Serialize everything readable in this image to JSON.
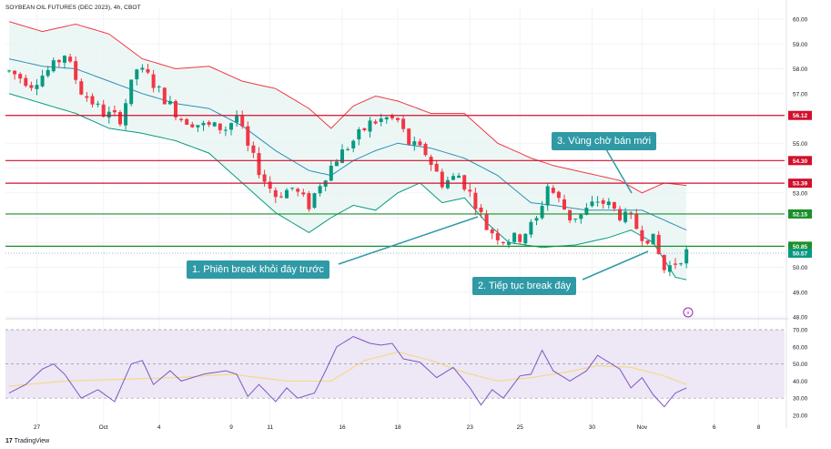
{
  "header": {
    "symbol": "SOYBEAN OIL FUTURES (DEC 2023), 4h, CBOT"
  },
  "branding": {
    "logo_text": "TradingView"
  },
  "callouts": [
    {
      "id": "c1",
      "text": "1. Phiên break khỏi đáy trước"
    },
    {
      "id": "c2",
      "text": "2. Tiếp tục break đáy"
    },
    {
      "id": "c3",
      "text": "3. Vùng chờ bán mới"
    }
  ],
  "colors": {
    "up": "#089981",
    "down": "#f23645",
    "band_upper": "#f23645",
    "band_lower": "#089981",
    "band_fill": "#e6f4f1",
    "basis": "#2f8fb5",
    "rsi": "#7e57c2",
    "rsi_ma": "#f7d774",
    "rsi_band": "#ede7f6",
    "callout_bg": "#2f9aa6",
    "red_level": "#d1102c",
    "green_level": "#1b8f2a"
  },
  "chart_data": [
    {
      "type": "candlestick",
      "title": "SOYBEAN OIL FUTURES (DEC 2023), 4h, CBOT",
      "ylim": [
        48,
        60
      ],
      "y_ticks": [
        "60.00",
        "59.00",
        "58.00",
        "57.00",
        "56.00",
        "55.00",
        "54.00",
        "53.00",
        "52.00",
        "51.00",
        "50.00",
        "49.00",
        "48.00"
      ],
      "x_ticks": [
        "27",
        "Oct",
        "4",
        "9",
        "11",
        "16",
        "18",
        "23",
        "25",
        "30",
        "Nov",
        "6",
        "8"
      ],
      "x_tick_index": [
        5,
        17,
        27,
        40,
        47,
        60,
        70,
        83,
        92,
        105,
        114,
        127,
        135
      ],
      "n_bars": 147,
      "last_price": 50.57,
      "levels": [
        {
          "price": 56.12,
          "label": "56.12",
          "role": "resistance"
        },
        {
          "price": 54.3,
          "label": "54.30",
          "role": "resistance"
        },
        {
          "price": 53.39,
          "label": "53.39",
          "role": "resistance"
        },
        {
          "price": 52.15,
          "label": "52.15",
          "role": "support"
        },
        {
          "price": 50.85,
          "label": "50.85",
          "role": "support"
        },
        {
          "price": 50.57,
          "label": "50.57",
          "role": "last"
        }
      ],
      "anchors": [
        [
          0,
          57.9
        ],
        [
          4,
          57.4
        ],
        [
          8,
          58.1
        ],
        [
          10,
          58.6
        ],
        [
          13,
          57.1
        ],
        [
          17,
          56.2
        ],
        [
          20,
          56.0
        ],
        [
          23,
          58.0
        ],
        [
          25,
          57.7
        ],
        [
          28,
          56.8
        ],
        [
          31,
          56.0
        ],
        [
          35,
          55.7
        ],
        [
          39,
          55.6
        ],
        [
          41,
          56.1
        ],
        [
          43,
          54.8
        ],
        [
          46,
          53.5
        ],
        [
          48,
          52.9
        ],
        [
          51,
          53.2
        ],
        [
          54,
          52.5
        ],
        [
          56,
          53.4
        ],
        [
          59,
          54.4
        ],
        [
          62,
          55.1
        ],
        [
          65,
          55.8
        ],
        [
          68,
          56.0
        ],
        [
          70,
          55.9
        ],
        [
          72,
          55.0
        ],
        [
          75,
          54.6
        ],
        [
          78,
          53.4
        ],
        [
          81,
          53.7
        ],
        [
          84,
          52.6
        ],
        [
          86,
          51.6
        ],
        [
          89,
          51.1
        ],
        [
          92,
          51.2
        ],
        [
          95,
          51.9
        ],
        [
          97,
          53.3
        ],
        [
          99,
          52.7
        ],
        [
          101,
          52.0
        ],
        [
          103,
          52.1
        ],
        [
          106,
          52.7
        ],
        [
          108,
          52.5
        ],
        [
          110,
          52.1
        ],
        [
          112,
          51.9
        ],
        [
          114,
          51.3
        ],
        [
          116,
          51.1
        ],
        [
          118,
          49.9
        ],
        [
          120,
          50.2
        ],
        [
          122,
          50.6
        ]
      ],
      "bollinger": {
        "upper": [
          [
            0,
            59.9
          ],
          [
            6,
            59.5
          ],
          [
            12,
            59.8
          ],
          [
            18,
            59.4
          ],
          [
            24,
            58.4
          ],
          [
            30,
            58.0
          ],
          [
            36,
            58.1
          ],
          [
            42,
            57.5
          ],
          [
            48,
            57.2
          ],
          [
            54,
            56.4
          ],
          [
            58,
            55.6
          ],
          [
            62,
            56.5
          ],
          [
            66,
            56.9
          ],
          [
            70,
            56.7
          ],
          [
            76,
            56.2
          ],
          [
            82,
            56.2
          ],
          [
            88,
            55.0
          ],
          [
            94,
            54.4
          ],
          [
            98,
            54.1
          ],
          [
            104,
            53.8
          ],
          [
            110,
            53.5
          ],
          [
            114,
            53.0
          ],
          [
            118,
            53.4
          ],
          [
            122,
            53.3
          ]
        ],
        "lower": [
          [
            0,
            57.0
          ],
          [
            6,
            56.6
          ],
          [
            12,
            56.2
          ],
          [
            18,
            55.6
          ],
          [
            24,
            55.4
          ],
          [
            30,
            55.1
          ],
          [
            36,
            54.6
          ],
          [
            42,
            53.4
          ],
          [
            48,
            52.2
          ],
          [
            54,
            51.4
          ],
          [
            58,
            52.0
          ],
          [
            62,
            52.5
          ],
          [
            66,
            52.3
          ],
          [
            70,
            53.0
          ],
          [
            74,
            53.4
          ],
          [
            78,
            52.6
          ],
          [
            82,
            52.8
          ],
          [
            86,
            51.8
          ],
          [
            90,
            51.0
          ],
          [
            96,
            50.8
          ],
          [
            102,
            50.9
          ],
          [
            108,
            51.2
          ],
          [
            112,
            51.5
          ],
          [
            116,
            51.0
          ],
          [
            120,
            49.6
          ],
          [
            122,
            49.5
          ]
        ],
        "basis": [
          [
            0,
            58.4
          ],
          [
            6,
            58.1
          ],
          [
            12,
            58.0
          ],
          [
            18,
            57.5
          ],
          [
            24,
            57.0
          ],
          [
            30,
            56.6
          ],
          [
            36,
            56.4
          ],
          [
            42,
            55.7
          ],
          [
            48,
            54.7
          ],
          [
            54,
            53.9
          ],
          [
            58,
            53.7
          ],
          [
            62,
            54.3
          ],
          [
            66,
            54.7
          ],
          [
            70,
            55.0
          ],
          [
            76,
            54.8
          ],
          [
            82,
            54.4
          ],
          [
            88,
            53.7
          ],
          [
            94,
            52.6
          ],
          [
            98,
            52.5
          ],
          [
            104,
            52.3
          ],
          [
            110,
            52.3
          ],
          [
            114,
            52.3
          ],
          [
            118,
            51.9
          ],
          [
            122,
            51.5
          ]
        ]
      }
    },
    {
      "type": "line",
      "title": "RSI",
      "ylim": [
        20,
        70
      ],
      "y_ticks": [
        "70.00",
        "60.00",
        "50.00",
        "40.00",
        "30.00",
        "20.00"
      ],
      "band": [
        30,
        70
      ],
      "mid": 50,
      "series": [
        {
          "role": "rsi",
          "points": [
            [
              0,
              33
            ],
            [
              3,
              38
            ],
            [
              6,
              47
            ],
            [
              8,
              50
            ],
            [
              10,
              44
            ],
            [
              13,
              30
            ],
            [
              16,
              35
            ],
            [
              19,
              28
            ],
            [
              22,
              50
            ],
            [
              24,
              52
            ],
            [
              26,
              38
            ],
            [
              29,
              46
            ],
            [
              31,
              40
            ],
            [
              35,
              44
            ],
            [
              39,
              46
            ],
            [
              41,
              44
            ],
            [
              43,
              31
            ],
            [
              45,
              38
            ],
            [
              48,
              28
            ],
            [
              50,
              36
            ],
            [
              52,
              30
            ],
            [
              55,
              33
            ],
            [
              57,
              46
            ],
            [
              59,
              60
            ],
            [
              62,
              66
            ],
            [
              65,
              62
            ],
            [
              67,
              61
            ],
            [
              69,
              62
            ],
            [
              71,
              53
            ],
            [
              74,
              51
            ],
            [
              77,
              42
            ],
            [
              80,
              48
            ],
            [
              83,
              36
            ],
            [
              85,
              26
            ],
            [
              87,
              35
            ],
            [
              89,
              30
            ],
            [
              92,
              43
            ],
            [
              94,
              44
            ],
            [
              96,
              58
            ],
            [
              98,
              46
            ],
            [
              101,
              40
            ],
            [
              104,
              46
            ],
            [
              106,
              55
            ],
            [
              108,
              51
            ],
            [
              110,
              47
            ],
            [
              112,
              36
            ],
            [
              114,
              42
            ],
            [
              116,
              32
            ],
            [
              118,
              25
            ],
            [
              120,
              33
            ],
            [
              122,
              36
            ]
          ]
        },
        {
          "role": "ma",
          "points": [
            [
              0,
              37
            ],
            [
              10,
              40
            ],
            [
              20,
              41
            ],
            [
              30,
              42
            ],
            [
              40,
              44
            ],
            [
              50,
              40
            ],
            [
              58,
              40
            ],
            [
              64,
              52
            ],
            [
              70,
              57
            ],
            [
              76,
              52
            ],
            [
              82,
              45
            ],
            [
              88,
              40
            ],
            [
              94,
              42
            ],
            [
              100,
              45
            ],
            [
              106,
              49
            ],
            [
              112,
              48
            ],
            [
              118,
              43
            ],
            [
              122,
              38
            ]
          ]
        }
      ]
    }
  ]
}
